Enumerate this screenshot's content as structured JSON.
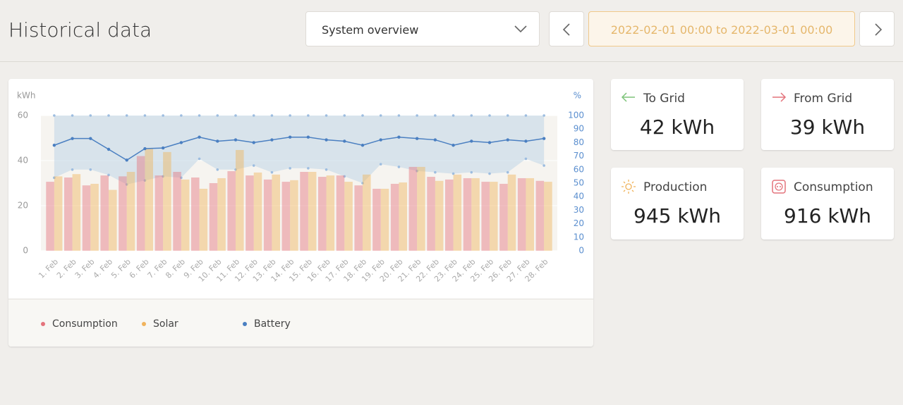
{
  "header": {
    "title": "Historical data",
    "selector": "System overview",
    "date_range": "2022-02-01 00:00 to 2022-03-01 00:00"
  },
  "cards": [
    {
      "label": "To Grid",
      "value": "42 kWh"
    },
    {
      "label": "From Grid",
      "value": "39 kWh"
    },
    {
      "label": "Production",
      "value": "945 kWh"
    },
    {
      "label": "Consumption",
      "value": "916 kWh"
    }
  ],
  "chart_data": {
    "type": "bar",
    "ylabel": "kWh",
    "y2label": "%",
    "categories": [
      "1. Feb",
      "2. Feb",
      "3. Feb",
      "4. Feb",
      "5. Feb",
      "6. Feb",
      "7. Feb",
      "8. Feb",
      "9. Feb",
      "10. Feb",
      "11. Feb",
      "12. Feb",
      "13. Feb",
      "14. Feb",
      "15. Feb",
      "16. Feb",
      "17. Feb",
      "18. Feb",
      "19. Feb",
      "20. Feb",
      "21. Feb",
      "22. Feb",
      "23. Feb",
      "24. Feb",
      "25. Feb",
      "26. Feb",
      "27. Feb",
      "28. Feb"
    ],
    "ylim": [
      0,
      60
    ],
    "yticks": [
      0,
      20,
      40,
      60
    ],
    "y2lim": [
      0,
      100
    ],
    "y2ticks": [
      0,
      10,
      20,
      30,
      40,
      50,
      60,
      70,
      80,
      90,
      100
    ],
    "grid": true,
    "series": [
      {
        "name": "Consumption",
        "color": "#e4737c",
        "values": [
          30.6,
          32.5,
          29,
          33.4,
          33,
          42,
          33.4,
          35,
          32.5,
          30,
          35.3,
          33.4,
          31.6,
          30.6,
          35,
          32.8,
          33.4,
          29,
          27.5,
          29.7,
          37.2,
          32.8,
          31.6,
          32.2,
          30.6,
          29.7,
          32.2,
          31
        ]
      },
      {
        "name": "Solar",
        "color": "#f0b35c",
        "values": [
          33,
          34,
          29.7,
          27,
          35,
          45.3,
          43.8,
          31.6,
          27.5,
          32.2,
          44.7,
          34.7,
          33.8,
          31.3,
          35,
          33.4,
          30.6,
          33.8,
          27.5,
          30.3,
          37.2,
          31,
          33.8,
          32.2,
          30.6,
          33.8,
          32.2,
          30.6
        ]
      },
      {
        "name": "Battery",
        "color": "#4a7fc1",
        "axis": "y2",
        "type": "line",
        "values": [
          78,
          83,
          83,
          75,
          67,
          75.5,
          76,
          80,
          84,
          81,
          82,
          80,
          82,
          84,
          84,
          82,
          81,
          78,
          82,
          84,
          83,
          82,
          78,
          81,
          80,
          82,
          81,
          83
        ],
        "min": [
          54,
          60,
          60,
          56,
          49,
          52,
          55,
          54,
          68,
          60,
          60,
          63,
          58,
          61,
          61,
          60,
          55,
          50,
          64,
          62,
          59,
          58,
          57,
          58,
          57,
          58,
          68,
          63
        ],
        "max": [
          100,
          100,
          100,
          100,
          100,
          100,
          100,
          100,
          100,
          100,
          100,
          100,
          100,
          100,
          100,
          100,
          100,
          100,
          100,
          100,
          100,
          100,
          100,
          100,
          100,
          100,
          100,
          100
        ]
      }
    ]
  }
}
